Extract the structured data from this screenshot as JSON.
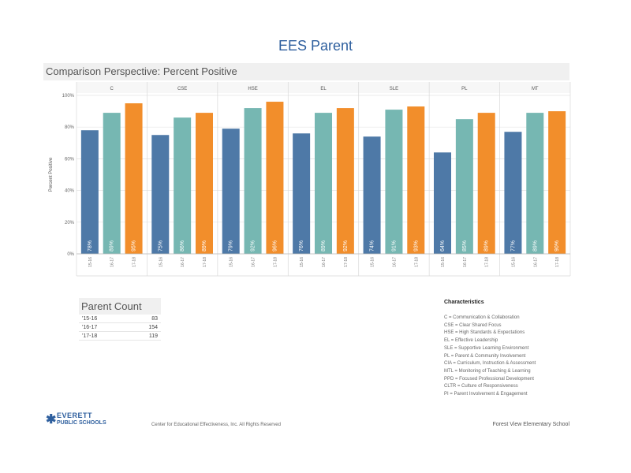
{
  "page_title": "EES Parent",
  "panel_title": "Comparison Perspective: Percent Positive",
  "colors": {
    "series1": "#4e79a7",
    "series2": "#76b7b2",
    "series3": "#f28e2b",
    "panel_bg": "#f0f0f0",
    "title": "#2e5f9e"
  },
  "chart_data": {
    "type": "bar",
    "title": "",
    "xlabel": "",
    "ylabel": "Percent Positive",
    "ylim": [
      0,
      100
    ],
    "yticks": [
      "0%",
      "20%",
      "40%",
      "60%",
      "80%",
      "100%"
    ],
    "grid": true,
    "facets": [
      "C",
      "CSE",
      "HSE",
      "EL",
      "SLE",
      "PL",
      "MT"
    ],
    "bar_labels": [
      "15-16",
      "16-17",
      "17-18"
    ],
    "series": [
      {
        "values": [
          78,
          75,
          79,
          76,
          74,
          64,
          77
        ]
      },
      {
        "values": [
          89,
          86,
          92,
          89,
          91,
          85,
          89
        ]
      },
      {
        "values": [
          95,
          89,
          96,
          92,
          93,
          89,
          90
        ]
      }
    ],
    "value_labels": [
      [
        "78%",
        "89%",
        "95%"
      ],
      [
        "75%",
        "86%",
        "89%"
      ],
      [
        "79%",
        "92%",
        "96%"
      ],
      [
        "76%",
        "89%",
        "92%"
      ],
      [
        "74%",
        "91%",
        "93%"
      ],
      [
        "64%",
        "85%",
        "89%"
      ],
      [
        "77%",
        "89%",
        "90%"
      ]
    ]
  },
  "parent_count": {
    "header": "Parent Count",
    "rows": [
      {
        "year": "'15-16",
        "count": "83"
      },
      {
        "year": "'16-17",
        "count": "154"
      },
      {
        "year": "'17-18",
        "count": "119"
      }
    ]
  },
  "characteristics": {
    "title": "Characteristics",
    "items": [
      "C = Communication & Collaboration",
      "CSE = Clear Shared Focus",
      "HSE = High Standards & Expectations",
      "EL = Effective Leadership",
      "SLE = Supportive Learning Environment",
      "PL = Parent & Community Involvement",
      "CIA = Curriculum, Instruction & Assessment",
      "MTL = Monitoring of Teaching & Learning",
      "PPD = Focused Professional Development",
      "CLTR = Culture of Responsiveness",
      "PI = Parent Involvement & Engagement"
    ]
  },
  "footer": {
    "logo_line1": "EVERETT",
    "logo_line2": "PUBLIC SCHOOLS",
    "center_text": "Center for Educational Effectiveness, Inc. All Rights Reserved",
    "right_text": "Forest View Elementary School"
  }
}
